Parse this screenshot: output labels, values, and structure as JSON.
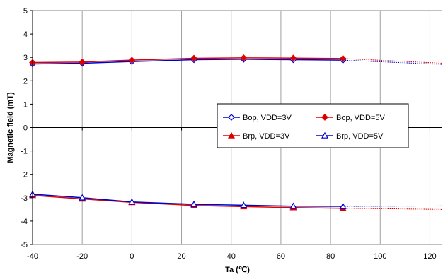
{
  "chart_data": {
    "type": "line",
    "xlabel": "Ta (℃)",
    "ylabel": "Magnetic field (mT)",
    "xlim": [
      -40,
      125
    ],
    "ylim": [
      -5,
      5
    ],
    "x_ticks": [
      -40,
      -20,
      0,
      20,
      40,
      60,
      80,
      100,
      120
    ],
    "y_ticks": [
      -5,
      -4,
      -3,
      -2,
      -1,
      0,
      1,
      2,
      3,
      4,
      5
    ],
    "grid": "vertical",
    "legend_placement": "center-right",
    "x": [
      -40,
      -20,
      0,
      25,
      45,
      65,
      85
    ],
    "series": [
      {
        "name": "Bop, VDD=3V",
        "color": "#0000cc",
        "marker": "diamond-open",
        "values": [
          2.72,
          2.75,
          2.82,
          2.9,
          2.92,
          2.9,
          2.88
        ],
        "extrapolation": {
          "x": [
            85,
            125
          ],
          "values": [
            2.88,
            2.7
          ]
        }
      },
      {
        "name": "Bop, VDD=5V",
        "color": "#dd0000",
        "marker": "diamond-filled",
        "values": [
          2.78,
          2.8,
          2.88,
          2.96,
          2.98,
          2.97,
          2.95
        ],
        "extrapolation": {
          "x": [
            85,
            125
          ],
          "values": [
            2.95,
            2.75
          ]
        }
      },
      {
        "name": "Brp, VDD=3V",
        "color": "#dd0000",
        "marker": "triangle-filled",
        "values": [
          -2.9,
          -3.05,
          -3.2,
          -3.33,
          -3.38,
          -3.42,
          -3.45
        ],
        "extrapolation": {
          "x": [
            85,
            125
          ],
          "values": [
            -3.45,
            -3.5
          ]
        }
      },
      {
        "name": "Brp, VDD=5V",
        "color": "#0000cc",
        "marker": "triangle-open",
        "values": [
          -2.85,
          -3.0,
          -3.18,
          -3.28,
          -3.32,
          -3.36,
          -3.37
        ],
        "extrapolation": {
          "x": [
            85,
            125
          ],
          "values": [
            -3.37,
            -3.35
          ]
        }
      }
    ]
  }
}
